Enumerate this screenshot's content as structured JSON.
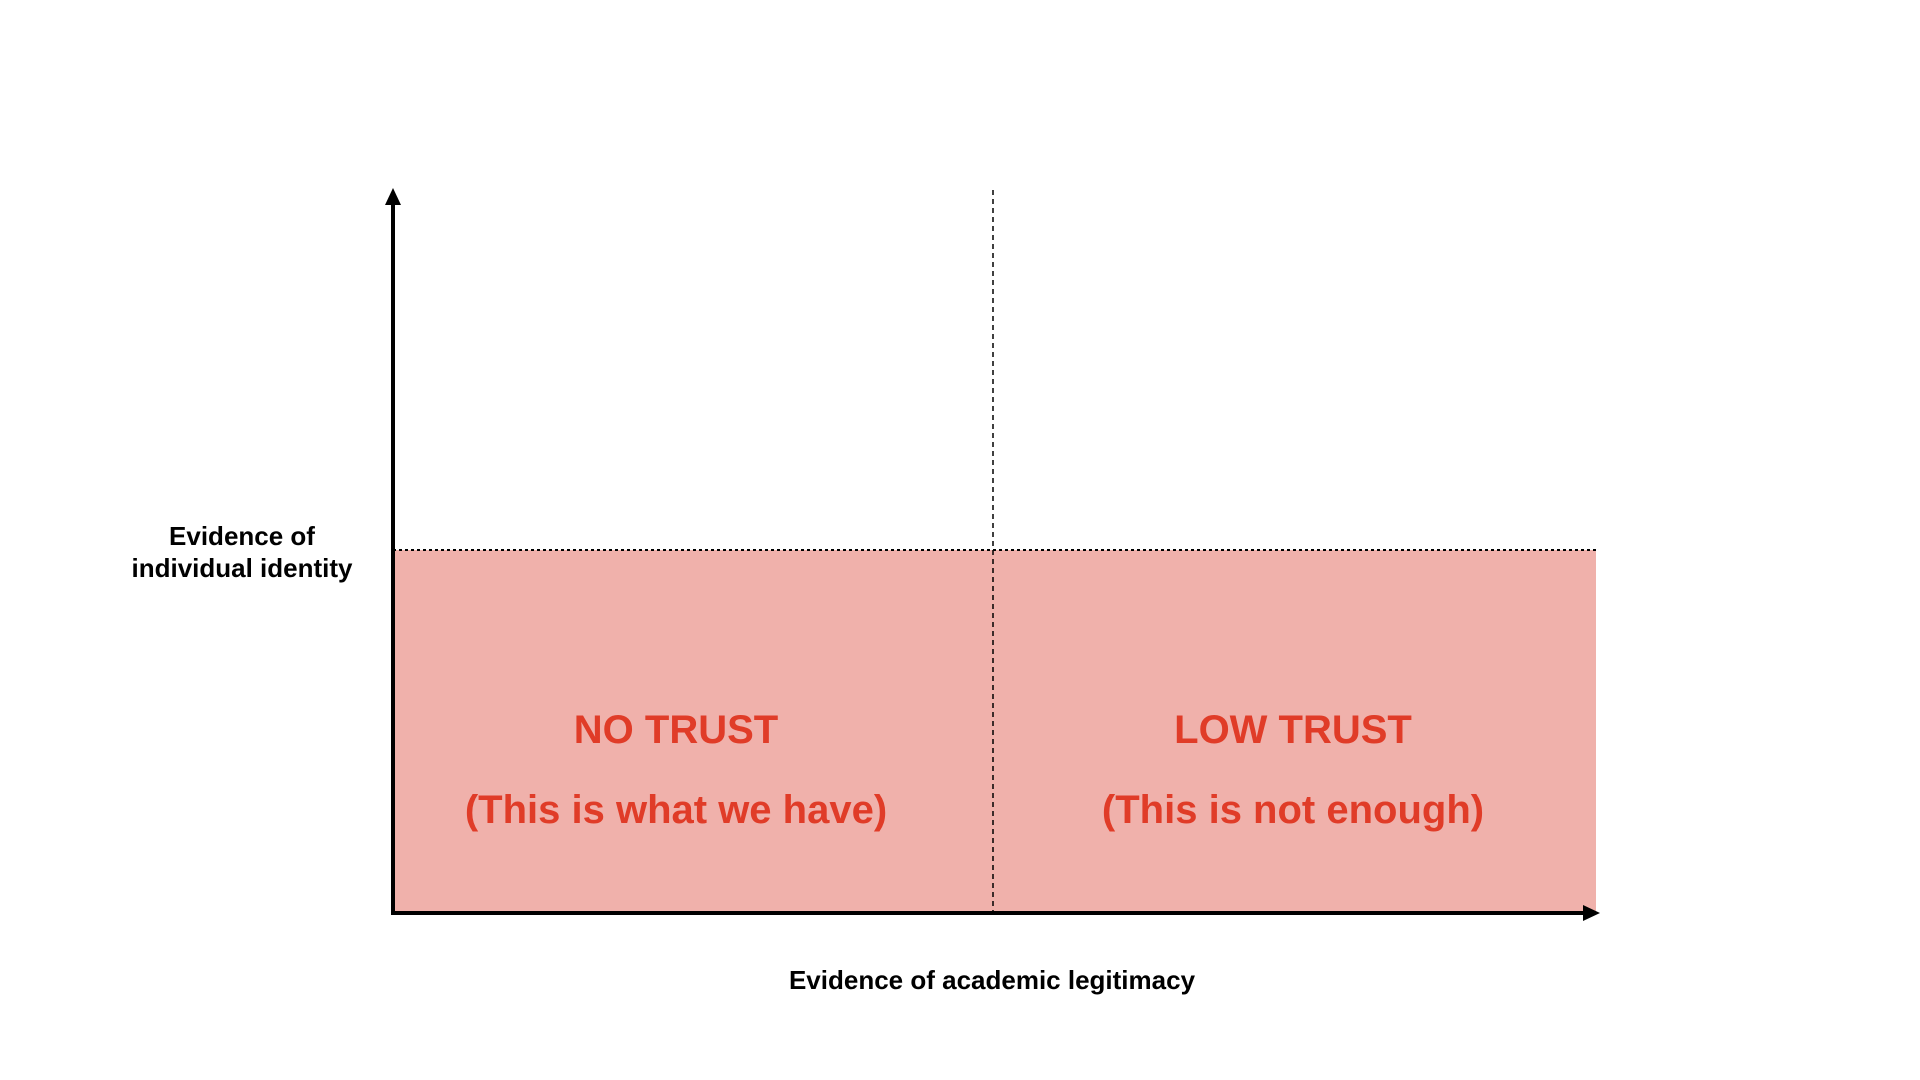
{
  "colors": {
    "fill": "#F0B1AB",
    "zone_text": "#E03C28",
    "axis": "#000000"
  },
  "axes": {
    "y_label_line1": "Evidence of",
    "y_label_line2": "individual identity",
    "x_label": "Evidence of academic legitimacy"
  },
  "zones": [
    {
      "title": "NO TRUST",
      "subtitle": "(This is what we have)"
    },
    {
      "title": "LOW TRUST",
      "subtitle": "(This is not enough)"
    }
  ]
}
